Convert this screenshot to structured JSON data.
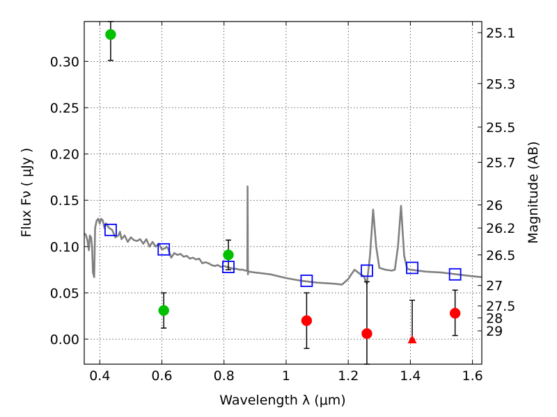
{
  "chart_data": {
    "type": "scatter",
    "xlabel": "Wavelength  λ (μm)",
    "ylabel_left": "Flux  Fν  ( μJy )",
    "ylabel_right": "Magnitude (AB)",
    "xlim": [
      0.35,
      1.63
    ],
    "ylim": [
      -0.027,
      0.343
    ],
    "x_ticks": [
      0.4,
      0.6,
      0.8,
      1.0,
      1.2,
      1.4,
      1.6
    ],
    "x_tick_labels": [
      "0.4",
      "0.6",
      "0.8",
      "1",
      "1.2",
      "1.4",
      "1.6"
    ],
    "y_ticks": [
      0.0,
      0.05,
      0.1,
      0.15,
      0.2,
      0.25,
      0.3
    ],
    "y_tick_labels": [
      "0.00",
      "0.05",
      "0.10",
      "0.15",
      "0.20",
      "0.25",
      "0.30"
    ],
    "right_ticks": [
      {
        "label": "25.1",
        "flux": 0.331
      },
      {
        "label": "25.3",
        "flux": 0.276
      },
      {
        "label": "25.5",
        "flux": 0.229
      },
      {
        "label": "25.7",
        "flux": 0.191
      },
      {
        "label": "26",
        "flux": 0.145
      },
      {
        "label": "26.2",
        "flux": 0.12
      },
      {
        "label": "26.5",
        "flux": 0.091
      },
      {
        "label": "27",
        "flux": 0.058
      },
      {
        "label": "27.5",
        "flux": 0.036
      },
      {
        "label": "28",
        "flux": 0.023
      },
      {
        "label": "29",
        "flux": 0.009
      }
    ],
    "grid": true,
    "colors": {
      "green": "#00c000",
      "red": "#ff0000",
      "blue": "#0000ff",
      "model": "#808080",
      "errorbar": "#000000"
    },
    "model_spectrum": {
      "x": [
        0.35,
        0.355,
        0.36,
        0.365,
        0.368,
        0.372,
        0.375,
        0.378,
        0.382,
        0.385,
        0.39,
        0.395,
        0.4,
        0.405,
        0.41,
        0.415,
        0.42,
        0.43,
        0.44,
        0.45,
        0.46,
        0.465,
        0.47,
        0.48,
        0.49,
        0.5,
        0.51,
        0.52,
        0.53,
        0.54,
        0.55,
        0.56,
        0.57,
        0.58,
        0.59,
        0.6,
        0.61,
        0.615,
        0.62,
        0.63,
        0.64,
        0.65,
        0.66,
        0.67,
        0.68,
        0.69,
        0.7,
        0.71,
        0.72,
        0.73,
        0.74,
        0.75,
        0.76,
        0.77,
        0.78,
        0.79,
        0.8,
        0.81,
        0.82,
        0.83,
        0.84,
        0.85,
        0.86,
        0.87,
        0.875,
        0.876,
        0.877,
        0.878,
        0.88,
        0.9,
        0.95,
        1.0,
        1.05,
        1.1,
        1.15,
        1.18,
        1.2,
        1.22,
        1.24,
        1.25,
        1.26,
        1.27,
        1.28,
        1.29,
        1.3,
        1.32,
        1.34,
        1.35,
        1.36,
        1.37,
        1.38,
        1.39,
        1.4,
        1.45,
        1.5,
        1.55,
        1.6,
        1.63
      ],
      "values": [
        0.114,
        0.113,
        0.107,
        0.096,
        0.112,
        0.11,
        0.1,
        0.072,
        0.067,
        0.12,
        0.128,
        0.13,
        0.125,
        0.13,
        0.128,
        0.12,
        0.125,
        0.12,
        0.118,
        0.11,
        0.112,
        0.116,
        0.108,
        0.112,
        0.105,
        0.11,
        0.107,
        0.106,
        0.108,
        0.103,
        0.108,
        0.1,
        0.105,
        0.1,
        0.103,
        0.097,
        0.098,
        0.1,
        0.098,
        0.088,
        0.093,
        0.091,
        0.092,
        0.089,
        0.09,
        0.087,
        0.088,
        0.086,
        0.087,
        0.082,
        0.083,
        0.082,
        0.08,
        0.079,
        0.08,
        0.078,
        0.079,
        0.078,
        0.077,
        0.076,
        0.076,
        0.075,
        0.075,
        0.074,
        0.074,
        0.165,
        0.07,
        0.074,
        0.073,
        0.072,
        0.07,
        0.066,
        0.063,
        0.061,
        0.06,
        0.059,
        0.065,
        0.075,
        0.07,
        0.068,
        0.06,
        0.09,
        0.14,
        0.1,
        0.077,
        0.075,
        0.074,
        0.075,
        0.1,
        0.144,
        0.09,
        0.076,
        0.075,
        0.073,
        0.072,
        0.07,
        0.068,
        0.067
      ]
    },
    "series": [
      {
        "marker": "circle",
        "color": "green",
        "points": [
          {
            "x": 0.435,
            "y": 0.329,
            "err_low": 0.301,
            "err_high": 0.343
          },
          {
            "x": 0.606,
            "y": 0.031,
            "err_low": 0.012,
            "err_high": 0.05
          },
          {
            "x": 0.814,
            "y": 0.091,
            "err_low": 0.075,
            "err_high": 0.107
          }
        ]
      },
      {
        "marker": "circle",
        "color": "red",
        "points": [
          {
            "x": 1.066,
            "y": 0.02,
            "err_low": -0.01,
            "err_high": 0.05
          },
          {
            "x": 1.26,
            "y": 0.006,
            "err_low": -0.027,
            "err_high": 0.062
          },
          {
            "x": 1.544,
            "y": 0.028,
            "err_low": 0.004,
            "err_high": 0.053
          }
        ]
      },
      {
        "marker": "triangle",
        "color": "red",
        "points": [
          {
            "x": 1.406,
            "y": 0.0,
            "err_low": 0.0,
            "err_high": 0.042
          }
        ]
      },
      {
        "marker": "square",
        "color": "blue",
        "points": [
          {
            "x": 0.435,
            "y": 0.118
          },
          {
            "x": 0.606,
            "y": 0.097
          },
          {
            "x": 0.814,
            "y": 0.078
          },
          {
            "x": 1.066,
            "y": 0.063
          },
          {
            "x": 1.26,
            "y": 0.074
          },
          {
            "x": 1.406,
            "y": 0.077
          },
          {
            "x": 1.544,
            "y": 0.07
          }
        ]
      }
    ]
  }
}
